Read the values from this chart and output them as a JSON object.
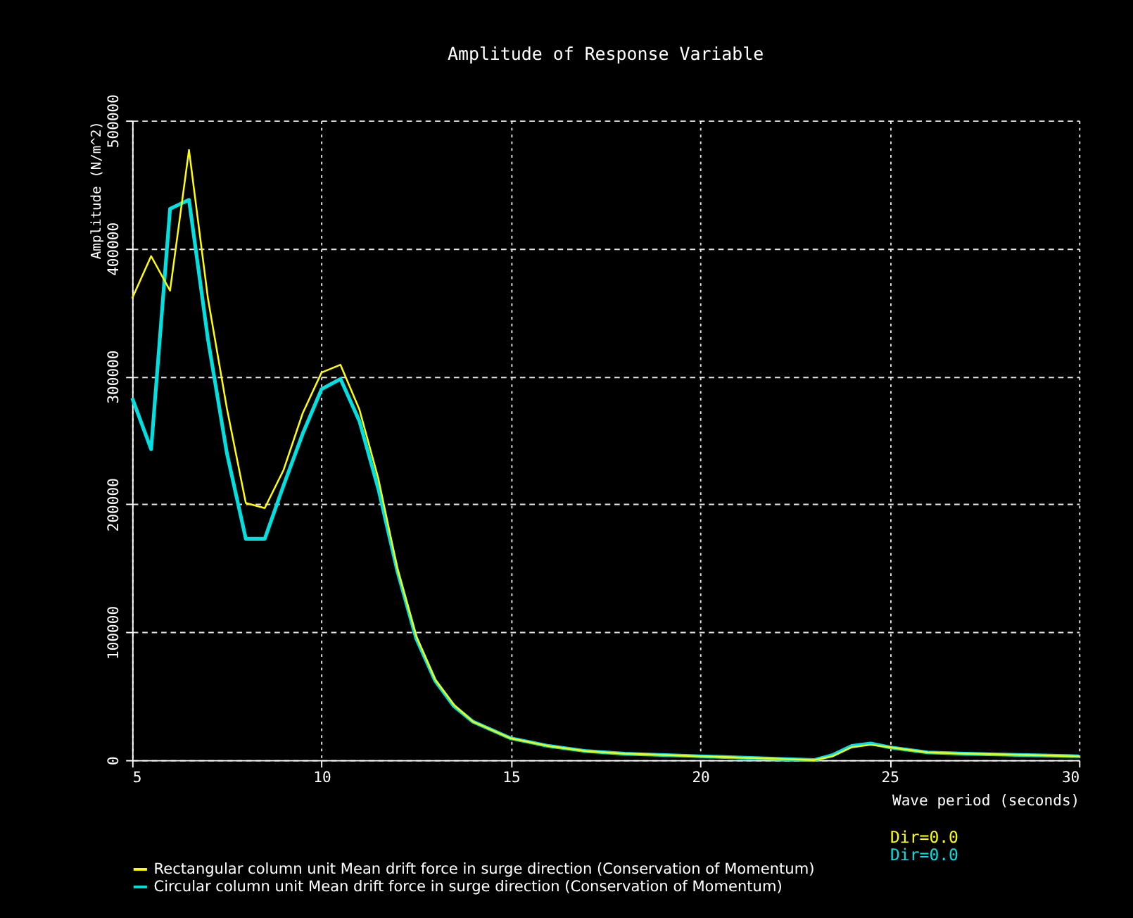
{
  "chart_data": {
    "type": "line",
    "title": "Amplitude of Response Variable",
    "xlabel": "Wave period (seconds)",
    "ylabel": "Amplitude (N/m^2)",
    "xlim": [
      5,
      30
    ],
    "xticks": [
      5,
      10,
      15,
      20,
      25,
      30
    ],
    "ylim": [
      0,
      500000
    ],
    "yticks": [
      0,
      100000,
      200000,
      300000,
      400000,
      500000
    ],
    "grid": true,
    "legend": "bottom",
    "marker": "none",
    "line_style": "solid",
    "annotations": [
      "Dir=0.0",
      "Dir=0.0"
    ],
    "series": [
      {
        "name": "Rectangular column unit Mean drift force in surge direction (Conservation of Momentum)",
        "color": "#ffff00",
        "x": [
          5,
          5.5,
          6,
          6.5,
          7,
          7.5,
          8,
          8.5,
          9,
          9.5,
          10,
          10.5,
          11,
          11.5,
          12,
          12.5,
          13,
          13.5,
          14,
          15,
          16,
          17,
          18,
          20,
          22,
          23,
          23.5,
          24,
          24.5,
          25,
          26,
          27,
          30
        ],
        "values": [
          361000,
          394000,
          367000,
          477000,
          361000,
          275000,
          201000,
          197000,
          227000,
          271000,
          303000,
          309000,
          274000,
          220000,
          150000,
          97000,
          63000,
          43000,
          30000,
          17000,
          11000,
          7000,
          5000,
          3000,
          1000,
          0,
          3000,
          10000,
          12000,
          10000,
          6000,
          5000,
          3000
        ]
      },
      {
        "name": "Circular column unit Mean drift force in surge direction (Conservation of Momentum)",
        "color": "#00e0e0",
        "x": [
          5,
          5.5,
          6,
          6.5,
          7,
          7.5,
          8,
          8.5,
          9,
          9.5,
          10,
          10.5,
          11,
          11.5,
          12,
          12.5,
          13,
          13.5,
          14,
          15,
          16,
          17,
          18,
          20,
          22,
          23,
          23.5,
          24,
          24.5,
          25,
          26,
          27,
          30
        ],
        "values": [
          283000,
          243000,
          431000,
          438000,
          329000,
          240000,
          173000,
          173000,
          215000,
          255000,
          290000,
          298000,
          265000,
          212000,
          148000,
          95000,
          62000,
          42000,
          30000,
          17000,
          11000,
          7000,
          5000,
          3000,
          1000,
          0,
          4000,
          11000,
          13000,
          10000,
          6000,
          5000,
          3000
        ]
      }
    ]
  }
}
